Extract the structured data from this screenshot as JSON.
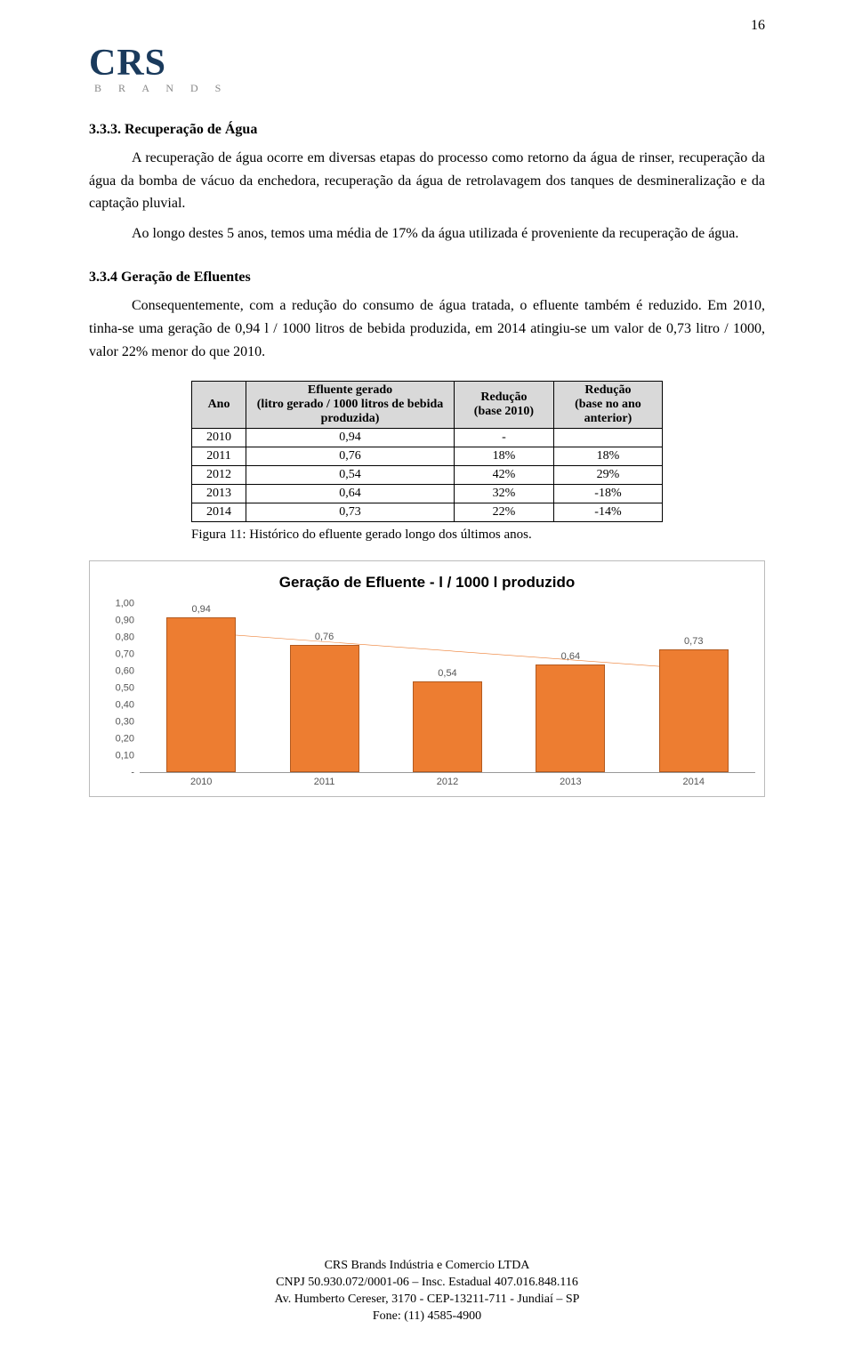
{
  "page_number": "16",
  "logo": {
    "main": "CRS",
    "sub": "B R A N D S"
  },
  "section_333": {
    "heading": "3.3.3. Recuperação de Água",
    "p1": "A recuperação de água ocorre em diversas etapas do processo como retorno da água de rinser, recuperação da água da bomba de vácuo da enchedora, recuperação da água de retrolavagem dos tanques de desmineralização e da captação pluvial.",
    "p2": "Ao longo destes 5 anos, temos uma média de 17% da água utilizada é proveniente da recuperação de água."
  },
  "section_334": {
    "heading": "3.3.4 Geração de Efluentes",
    "p1": "Consequentemente, com a redução do consumo de água tratada, o efluente também é reduzido. Em 2010, tinha-se uma geração de 0,94 l / 1000 litros de bebida produzida, em 2014 atingiu-se um valor de 0,73 litro / 1000, valor 22% menor do que 2010."
  },
  "table": {
    "headers": {
      "year": "Ano",
      "effluent": "Efluente gerado\n(litro gerado / 1000 litros de bebida produzida)",
      "red2010": "Redução\n(base 2010)",
      "redprev": "Redução\n(base no ano anterior)"
    },
    "rows": [
      {
        "year": "2010",
        "effluent": "0,94",
        "red2010": "-",
        "redprev": ""
      },
      {
        "year": "2011",
        "effluent": "0,76",
        "red2010": "18%",
        "redprev": "18%"
      },
      {
        "year": "2012",
        "effluent": "0,54",
        "red2010": "42%",
        "redprev": "29%"
      },
      {
        "year": "2013",
        "effluent": "0,64",
        "red2010": "32%",
        "redprev": "-18%"
      },
      {
        "year": "2014",
        "effluent": "0,73",
        "red2010": "22%",
        "redprev": "-14%"
      }
    ],
    "caption": "Figura 11: Histórico do efluente gerado longo dos últimos anos."
  },
  "chart": {
    "type": "bar",
    "title": "Geração de Efluente - l / 1000 l produzido",
    "categories": [
      "2010",
      "2011",
      "2012",
      "2013",
      "2014"
    ],
    "values": [
      0.94,
      0.76,
      0.54,
      0.64,
      0.73
    ],
    "value_labels": [
      "0,94",
      "0,76",
      "0,54",
      "0,64",
      "0,73"
    ],
    "ylim": [
      0.0,
      1.0
    ],
    "yticks": [
      "1,00",
      "0,90",
      "0,80",
      "0,70",
      "0,60",
      "0,50",
      "0,40",
      "0,30",
      "0,20",
      "0,10",
      "-"
    ],
    "bar_color": "#ed7d31",
    "bar_border": "#b35a1f",
    "trend_color": "#ed7d31",
    "axis_text_color": "#555555",
    "background": "#ffffff",
    "label_fontsize": 11,
    "title_fontsize": 17
  },
  "footer": {
    "l1": "CRS Brands Indústria e Comercio LTDA",
    "l2": "CNPJ 50.930.072/0001-06 – Insc. Estadual 407.016.848.116",
    "l3": "Av. Humberto Cereser, 3170 - CEP-13211-711 - Jundiaí – SP",
    "l4": "Fone: (11) 4585-4900"
  }
}
